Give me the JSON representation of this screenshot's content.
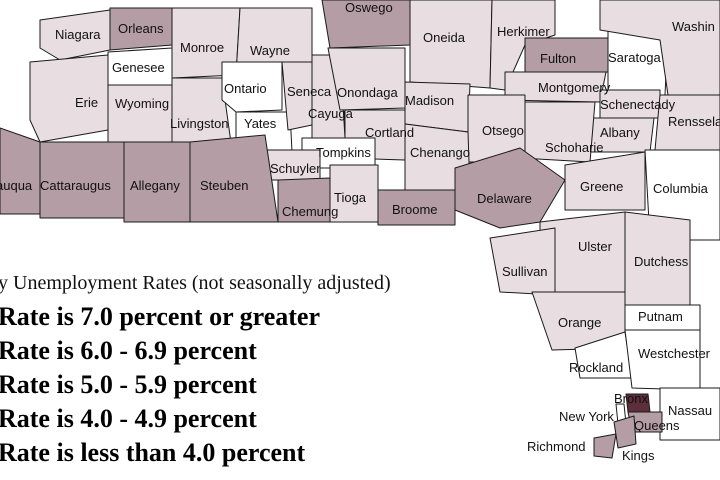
{
  "legend": {
    "title": "y Unemployment Rates (not seasonally adjusted)",
    "rows": [
      {
        "label": "Rate is 7.0 percent or greater",
        "color": "#5c2f3a"
      },
      {
        "label": "Rate is 6.0 - 6.9 percent",
        "color": "#9a8088"
      },
      {
        "label": "Rate is 5.0 - 5.9 percent",
        "color": "#b49da4"
      },
      {
        "label": "Rate is 4.0 - 4.9 percent",
        "color": "#e8dde0"
      },
      {
        "label": "Rate is less than 4.0 percent",
        "color": "#ffffff"
      }
    ]
  },
  "counties": [
    {
      "name": "Niagara",
      "shade": "#e8dde0"
    },
    {
      "name": "Orleans",
      "shade": "#b49da4"
    },
    {
      "name": "Genesee",
      "shade": "#ffffff"
    },
    {
      "name": "Monroe",
      "shade": "#e8dde0"
    },
    {
      "name": "Wayne",
      "shade": "#e8dde0"
    },
    {
      "name": "Oswego",
      "shade": "#b49da4"
    },
    {
      "name": "Oneida",
      "shade": "#e8dde0"
    },
    {
      "name": "Herkimer",
      "shade": "#e8dde0"
    },
    {
      "name": "Fulton",
      "shade": "#b49da4"
    },
    {
      "name": "Saratoga",
      "shade": "#ffffff"
    },
    {
      "name": "Washin",
      "shade": "#e8dde0"
    },
    {
      "name": "Erie",
      "shade": "#e8dde0"
    },
    {
      "name": "Wyoming",
      "shade": "#e8dde0"
    },
    {
      "name": "Livingston",
      "shade": "#e8dde0"
    },
    {
      "name": "Ontario",
      "shade": "#ffffff"
    },
    {
      "name": "Yates",
      "shade": "#ffffff"
    },
    {
      "name": "Seneca",
      "shade": "#e8dde0"
    },
    {
      "name": "Cayuga",
      "shade": "#e8dde0"
    },
    {
      "name": "Onondaga",
      "shade": "#e8dde0"
    },
    {
      "name": "Madison",
      "shade": "#e8dde0"
    },
    {
      "name": "Montgomery",
      "shade": "#e8dde0"
    },
    {
      "name": "Schenectady",
      "shade": "#e8dde0"
    },
    {
      "name": "Rensselae",
      "shade": "#e8dde0"
    },
    {
      "name": "Albany",
      "shade": "#e8dde0"
    },
    {
      "name": "Schoharie",
      "shade": "#e8dde0"
    },
    {
      "name": "Otsego",
      "shade": "#e8dde0"
    },
    {
      "name": "Cortland",
      "shade": "#e8dde0"
    },
    {
      "name": "Tompkins",
      "shade": "#ffffff"
    },
    {
      "name": "Schuyler",
      "shade": "#e8dde0"
    },
    {
      "name": "Chenango",
      "shade": "#e8dde0"
    },
    {
      "name": "Delaware",
      "shade": "#b49da4"
    },
    {
      "name": "Greene",
      "shade": "#e8dde0"
    },
    {
      "name": "Columbia",
      "shade": "#ffffff"
    },
    {
      "name": "auqua",
      "shade": "#b49da4"
    },
    {
      "name": "Cattaraugus",
      "shade": "#b49da4"
    },
    {
      "name": "Allegany",
      "shade": "#b49da4"
    },
    {
      "name": "Steuben",
      "shade": "#b49da4"
    },
    {
      "name": "Chemung",
      "shade": "#b49da4"
    },
    {
      "name": "Tioga",
      "shade": "#e8dde0"
    },
    {
      "name": "Broome",
      "shade": "#b49da4"
    },
    {
      "name": "Ulster",
      "shade": "#e8dde0"
    },
    {
      "name": "Dutchess",
      "shade": "#e8dde0"
    },
    {
      "name": "Sullivan",
      "shade": "#e8dde0"
    },
    {
      "name": "Orange",
      "shade": "#e8dde0"
    },
    {
      "name": "Putnam",
      "shade": "#ffffff"
    },
    {
      "name": "Rockland",
      "shade": "#ffffff"
    },
    {
      "name": "Westchester",
      "shade": "#ffffff"
    },
    {
      "name": "Bronx",
      "shade": "#5c2f3a"
    },
    {
      "name": "New York",
      "shade": "#ffffff"
    },
    {
      "name": "Nassau",
      "shade": "#ffffff"
    },
    {
      "name": "Queens",
      "shade": "#b49da4"
    },
    {
      "name": "Richmond",
      "shade": "#b49da4"
    },
    {
      "name": "Kings",
      "shade": "#b49da4"
    }
  ]
}
